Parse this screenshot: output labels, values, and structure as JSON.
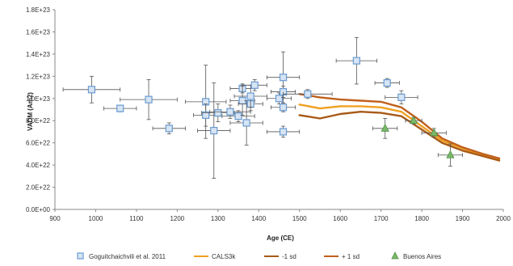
{
  "chart_data": {
    "type": "scatter",
    "title": "",
    "xlabel": "Age (CE)",
    "ylabel": "VADM (Am2)",
    "xlim": [
      900,
      2000
    ],
    "ylim": [
      0,
      1.8e+23
    ],
    "x_ticks": [
      900,
      1000,
      1100,
      1200,
      1300,
      1400,
      1500,
      1600,
      1700,
      1800,
      1900,
      2000
    ],
    "x_tick_labels": [
      "900",
      "1000",
      "1100",
      "1200",
      "1300",
      "1400",
      "1500",
      "1600",
      "1700",
      "1800",
      "1900",
      "2000"
    ],
    "y_ticks": [
      0,
      2e+22,
      4e+22,
      6e+22,
      8e+22,
      1e+23,
      1.2e+23,
      1.4e+23,
      1.6e+23,
      1.8e+23
    ],
    "y_tick_labels": [
      "0.0E+00",
      "2.0E+22",
      "4.0E+22",
      "6.0E+22",
      "8.0E+22",
      "1.0E+23",
      "1.2E+23",
      "1.4E+23",
      "1.6E+23",
      "1.8E+23"
    ],
    "grid": false,
    "legend_position": "bottom",
    "series": [
      {
        "name": "Goguitchaichvili et al. 2011",
        "kind": "scatter",
        "marker": "square",
        "color": "#6a9bd0",
        "points": [
          {
            "x": 990,
            "y": 1.08e+23,
            "xerr": 70,
            "yerr": 1.2e+22
          },
          {
            "x": 1060,
            "y": 9.1e+22,
            "xerr": 40,
            "yerr": 3e+21
          },
          {
            "x": 1130,
            "y": 9.9e+22,
            "xerr": 70,
            "yerr": 1.8e+22
          },
          {
            "x": 1180,
            "y": 7.3e+22,
            "xerr": 40,
            "yerr": 5e+21
          },
          {
            "x": 1270,
            "y": 9.7e+22,
            "xerr": 50,
            "yerr": 3.3e+22
          },
          {
            "x": 1270,
            "y": 8.5e+22,
            "xerr": 30,
            "yerr": 1e+22
          },
          {
            "x": 1290,
            "y": 7.1e+22,
            "xerr": 40,
            "yerr": 4.3e+22
          },
          {
            "x": 1300,
            "y": 8.7e+22,
            "xerr": 40,
            "yerr": 8e+21
          },
          {
            "x": 1330,
            "y": 8.8e+22,
            "xerr": 50,
            "yerr": 6e+21
          },
          {
            "x": 1350,
            "y": 8.4e+22,
            "xerr": 40,
            "yerr": 5e+21
          },
          {
            "x": 1360,
            "y": 1.09e+23,
            "xerr": 30,
            "yerr": 4e+21
          },
          {
            "x": 1360,
            "y": 9.8e+22,
            "xerr": 30,
            "yerr": 1.3e+22
          },
          {
            "x": 1370,
            "y": 7.8e+22,
            "xerr": 40,
            "yerr": 2e+22
          },
          {
            "x": 1380,
            "y": 9.5e+22,
            "xerr": 30,
            "yerr": 6e+21
          },
          {
            "x": 1380,
            "y": 1.02e+23,
            "xerr": 40,
            "yerr": 1e+22
          },
          {
            "x": 1390,
            "y": 1.12e+23,
            "xerr": 30,
            "yerr": 5e+21
          },
          {
            "x": 1450,
            "y": 1e+23,
            "xerr": 30,
            "yerr": 5e+21
          },
          {
            "x": 1460,
            "y": 1.19e+23,
            "xerr": 40,
            "yerr": 2.3e+22
          },
          {
            "x": 1460,
            "y": 1.06e+23,
            "xerr": 30,
            "yerr": 5e+21
          },
          {
            "x": 1460,
            "y": 9.2e+22,
            "xerr": 30,
            "yerr": 4e+21
          },
          {
            "x": 1460,
            "y": 7e+22,
            "xerr": 40,
            "yerr": 5e+21
          },
          {
            "x": 1520,
            "y": 1.04e+23,
            "xerr": 60,
            "yerr": 4e+21
          },
          {
            "x": 1640,
            "y": 1.34e+23,
            "xerr": 50,
            "yerr": 2.1e+22
          },
          {
            "x": 1715,
            "y": 1.14e+23,
            "xerr": 30,
            "yerr": 4e+21
          },
          {
            "x": 1750,
            "y": 1.01e+23,
            "xerr": 40,
            "yerr": 6e+21
          }
        ]
      },
      {
        "name": "CALS3k",
        "kind": "line",
        "color": "#f0a020",
        "x": [
          1500,
          1550,
          1600,
          1650,
          1700,
          1750,
          1800,
          1850,
          1900,
          1950,
          1990
        ],
        "y": [
          9.45e+22,
          9.1e+22,
          9.3e+22,
          9.3e+22,
          9.2e+22,
          8.8e+22,
          7.5e+22,
          6.2e+22,
          5.5e+22,
          4.9e+22,
          4.5e+22
        ]
      },
      {
        "name": "-1 sd",
        "kind": "line",
        "color": "#a85a18",
        "x": [
          1500,
          1550,
          1600,
          1650,
          1700,
          1750,
          1800,
          1850,
          1900,
          1950,
          1990
        ],
        "y": [
          8.5e+22,
          8.2e+22,
          8.6e+22,
          8.8e+22,
          8.7e+22,
          8.4e+22,
          7.2e+22,
          6e+22,
          5.3e+22,
          4.8e+22,
          4.4e+22
        ]
      },
      {
        "name": "+ 1 sd",
        "kind": "line",
        "color": "#c0601c",
        "x": [
          1500,
          1550,
          1600,
          1650,
          1700,
          1750,
          1800,
          1850,
          1900,
          1950,
          1990
        ],
        "y": [
          1.04e+23,
          1.01e+23,
          9.9e+22,
          9.8e+22,
          9.7e+22,
          9.2e+22,
          7.9e+22,
          6.4e+22,
          5.6e+22,
          5e+22,
          4.6e+22
        ]
      },
      {
        "name": "Buenos Aires",
        "kind": "scatter",
        "marker": "triangle",
        "color": "#7ab86a",
        "points": [
          {
            "x": 1710,
            "y": 7.3e+22,
            "xerr": 30,
            "yerr": 9e+21
          },
          {
            "x": 1780,
            "y": 8e+22,
            "xerr": 20,
            "yerr": 3e+21
          },
          {
            "x": 1830,
            "y": 6.9e+22,
            "xerr": 30,
            "yerr": 4e+21
          },
          {
            "x": 1870,
            "y": 4.9e+22,
            "xerr": 30,
            "yerr": 1e+22
          }
        ]
      }
    ]
  }
}
